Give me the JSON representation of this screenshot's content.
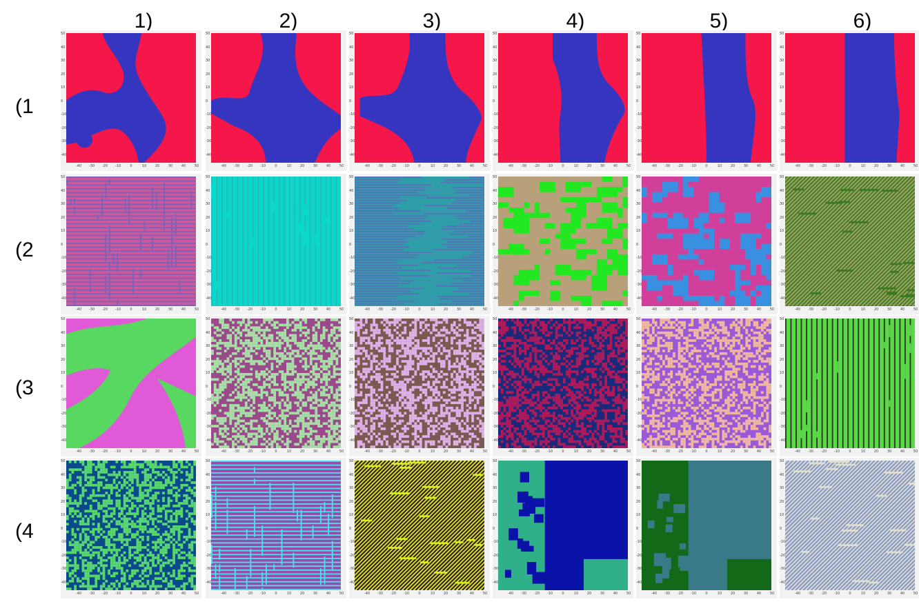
{
  "columns": [
    "1)",
    "2)",
    "3)",
    "4)",
    "5)",
    "6)"
  ],
  "rows": [
    "(1",
    "(2",
    "(3",
    "(4"
  ],
  "axis_ticks": [
    "-40",
    "-30",
    "-20",
    "-10",
    "0",
    "10",
    "20",
    "30",
    "40",
    "50"
  ],
  "axis_ticks_y": [
    "50",
    "40",
    "30",
    "20",
    "10",
    "0",
    "-10",
    "-20",
    "-30",
    "-40"
  ],
  "panels": [
    {
      "row": 0,
      "col": 0,
      "pattern": "blob1",
      "colors": [
        "#f5164a",
        "#3535c0"
      ]
    },
    {
      "row": 0,
      "col": 1,
      "pattern": "blob2",
      "colors": [
        "#f5164a",
        "#3535c0"
      ]
    },
    {
      "row": 0,
      "col": 2,
      "pattern": "blob3",
      "colors": [
        "#f5164a",
        "#3535c0"
      ]
    },
    {
      "row": 0,
      "col": 3,
      "pattern": "band4",
      "colors": [
        "#f5164a",
        "#3535c0"
      ]
    },
    {
      "row": 0,
      "col": 4,
      "pattern": "band5",
      "colors": [
        "#f5164a",
        "#3535c0"
      ]
    },
    {
      "row": 0,
      "col": 5,
      "pattern": "band6",
      "colors": [
        "#f5164a",
        "#3535c0"
      ]
    },
    {
      "row": 1,
      "col": 0,
      "pattern": "maze",
      "colors": [
        "#d0589a",
        "#7a62b8"
      ]
    },
    {
      "row": 1,
      "col": 1,
      "pattern": "vstripes",
      "colors": [
        "#0ad8c8",
        "#2ab8c0"
      ]
    },
    {
      "row": 1,
      "col": 2,
      "pattern": "hstripes",
      "colors": [
        "#2e9ea8",
        "#5a70b8"
      ]
    },
    {
      "row": 1,
      "col": 3,
      "pattern": "blocks",
      "colors": [
        "#b8a07a",
        "#22e822"
      ]
    },
    {
      "row": 1,
      "col": 4,
      "pattern": "blocks",
      "colors": [
        "#d0409a",
        "#3a90e0"
      ]
    },
    {
      "row": 1,
      "col": 5,
      "pattern": "diagonal",
      "colors": [
        "#3c7a22",
        "#9aa060"
      ]
    },
    {
      "row": 2,
      "col": 0,
      "pattern": "waves",
      "colors": [
        "#e05ad8",
        "#58d860"
      ]
    },
    {
      "row": 2,
      "col": 1,
      "pattern": "noise",
      "colors": [
        "#9a4a8a",
        "#a8e0a8"
      ]
    },
    {
      "row": 2,
      "col": 2,
      "pattern": "noise",
      "colors": [
        "#7a5a50",
        "#e0b0e8"
      ]
    },
    {
      "row": 2,
      "col": 3,
      "pattern": "noise",
      "colors": [
        "#1a2a7a",
        "#b01a5a"
      ]
    },
    {
      "row": 2,
      "col": 4,
      "pattern": "noise",
      "colors": [
        "#9a5ad8",
        "#f0b8a0"
      ]
    },
    {
      "row": 2,
      "col": 5,
      "pattern": "vstripes",
      "colors": [
        "#5ad848",
        "#2a3a20"
      ]
    },
    {
      "row": 3,
      "col": 0,
      "pattern": "noise",
      "colors": [
        "#0a4a8a",
        "#5ad870"
      ]
    },
    {
      "row": 3,
      "col": 1,
      "pattern": "maze",
      "colors": [
        "#9a4aa8",
        "#4ae0f0"
      ]
    },
    {
      "row": 3,
      "col": 2,
      "pattern": "diagonal",
      "colors": [
        "#d8f020",
        "#3a2020"
      ]
    },
    {
      "row": 3,
      "col": 3,
      "pattern": "quad",
      "colors": [
        "#0a12a8",
        "#30b088"
      ]
    },
    {
      "row": 3,
      "col": 4,
      "pattern": "quad",
      "colors": [
        "#3a7a88",
        "#126a18"
      ]
    },
    {
      "row": 3,
      "col": 5,
      "pattern": "diagonal",
      "colors": [
        "#e0e0d0",
        "#8a9ac8"
      ]
    }
  ]
}
